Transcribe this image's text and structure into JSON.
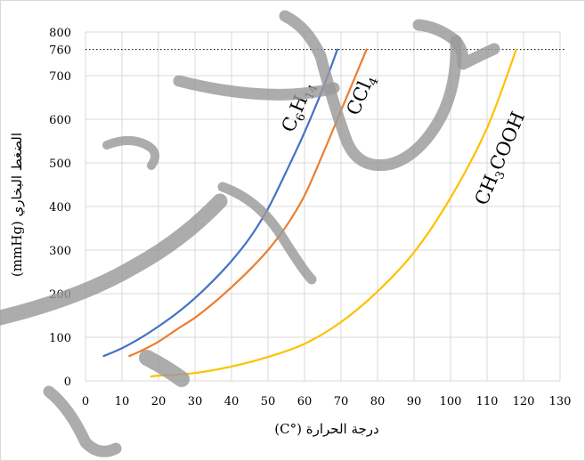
{
  "chart_data": {
    "type": "line",
    "xlabel": "درجة الحرارة (°C)",
    "ylabel": "الضغط البخاري (mmHg)",
    "xlim": [
      0,
      130
    ],
    "ylim": [
      0,
      800
    ],
    "xticks": [
      0,
      10,
      20,
      30,
      40,
      50,
      60,
      70,
      80,
      90,
      100,
      110,
      120,
      130
    ],
    "yticks": [
      0,
      100,
      200,
      300,
      400,
      500,
      600,
      700,
      760,
      800
    ],
    "grid": true,
    "reference_line": {
      "y": 760,
      "style": "dotted",
      "color": "#000000"
    },
    "series": [
      {
        "name": "C6H14",
        "color": "#4472c4",
        "x": [
          5,
          10,
          15,
          20,
          25,
          30,
          35,
          40,
          45,
          50,
          55,
          60,
          65,
          69
        ],
        "y": [
          57,
          75,
          98,
          125,
          155,
          190,
          230,
          275,
          328,
          395,
          480,
          570,
          670,
          760
        ]
      },
      {
        "name": "CCl4",
        "color": "#ed7d31",
        "x": [
          12,
          15,
          20,
          25,
          30,
          35,
          40,
          45,
          50,
          55,
          60,
          65,
          70,
          75,
          77
        ],
        "y": [
          57,
          68,
          90,
          118,
          145,
          178,
          215,
          255,
          300,
          355,
          425,
          520,
          620,
          720,
          760
        ]
      },
      {
        "name": "CH3COOH",
        "color": "#ffc000",
        "x": [
          18,
          20,
          30,
          40,
          50,
          60,
          70,
          80,
          90,
          100,
          110,
          118
        ],
        "y": [
          10,
          12,
          18,
          33,
          55,
          85,
          135,
          205,
          295,
          420,
          580,
          760
        ]
      }
    ]
  },
  "series_labels": {
    "c6h14": {
      "base1": "C",
      "sub1": "6",
      "base2": "H",
      "sub2": "14"
    },
    "ccl4": {
      "base1": "CCl",
      "sub1": "4"
    },
    "ch3cooh": {
      "base1": "CH",
      "sub1": "3",
      "base2": "COOH"
    }
  },
  "watermark": {
    "color": "#9a9a9a"
  }
}
